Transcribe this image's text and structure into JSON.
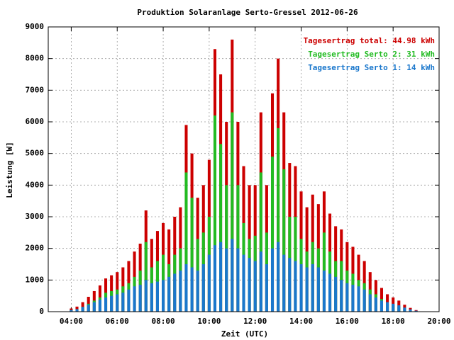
{
  "chart_data": {
    "type": "bar",
    "title": "Produktion Solaranlage Serto-Gressel 2012-06-26",
    "x_label": "Zeit (UTC)",
    "y_label": "Leistung [W]",
    "x": [
      4,
      4.25,
      4.5,
      4.75,
      5,
      5.25,
      5.5,
      5.75,
      6,
      6.25,
      6.5,
      6.75,
      7,
      7.25,
      7.5,
      7.75,
      8,
      8.25,
      8.5,
      8.75,
      9,
      9.25,
      9.5,
      9.75,
      10,
      10.25,
      10.5,
      10.75,
      11,
      11.25,
      11.5,
      11.75,
      12,
      12.25,
      12.5,
      12.75,
      13,
      13.25,
      13.5,
      13.75,
      14,
      14.25,
      14.5,
      14.75,
      15,
      15.25,
      15.5,
      15.75,
      16,
      16.25,
      16.5,
      16.75,
      17,
      17.25,
      17.5,
      17.75,
      18,
      18.25,
      18.5,
      18.75,
      19
    ],
    "series": [
      {
        "name": "Tagesertrag total: 44.98 kWh",
        "color": "#cc0000",
        "values": [
          100,
          160,
          300,
          470,
          650,
          830,
          1050,
          1150,
          1250,
          1400,
          1600,
          1900,
          2150,
          3200,
          2300,
          2550,
          2800,
          2600,
          3000,
          3300,
          5900,
          5000,
          3600,
          4000,
          4800,
          8300,
          7500,
          6000,
          8600,
          6000,
          4600,
          4000,
          4000,
          6300,
          4000,
          6900,
          8000,
          6300,
          4700,
          4600,
          3800,
          3300,
          3700,
          3400,
          3800,
          3100,
          2700,
          2600,
          2200,
          2050,
          1800,
          1600,
          1250,
          1000,
          750,
          550,
          450,
          350,
          220,
          120,
          50
        ]
      },
      {
        "name": "Tagesertrag Serto 2: 31 kWh",
        "color": "#22bb22",
        "values": [
          50,
          80,
          150,
          250,
          350,
          450,
          600,
          650,
          700,
          800,
          900,
          1100,
          1300,
          2200,
          1400,
          1600,
          1800,
          1500,
          1800,
          2000,
          4400,
          3600,
          2300,
          2500,
          3000,
          6200,
          5300,
          4000,
          6300,
          4000,
          2800,
          2300,
          2400,
          4400,
          2500,
          4900,
          5800,
          4500,
          3000,
          3000,
          2300,
          1900,
          2200,
          2000,
          2500,
          1900,
          1600,
          1600,
          1300,
          1200,
          1000,
          900,
          700,
          550,
          400,
          250,
          200,
          150,
          90,
          50,
          20
        ]
      },
      {
        "name": "Tagesertrag Serto 1: 14 kWh",
        "color": "#1a77cc",
        "values": [
          50,
          80,
          150,
          220,
          300,
          380,
          450,
          500,
          550,
          600,
          700,
          800,
          850,
          1000,
          900,
          950,
          1000,
          1100,
          1200,
          1300,
          1500,
          1400,
          1300,
          1500,
          1800,
          2100,
          2200,
          2000,
          2300,
          2000,
          1800,
          1700,
          1600,
          1900,
          1500,
          2000,
          2200,
          1800,
          1700,
          1600,
          1500,
          1400,
          1500,
          1400,
          1300,
          1200,
          1100,
          1000,
          900,
          850,
          800,
          700,
          550,
          450,
          350,
          300,
          250,
          200,
          130,
          70,
          30
        ]
      }
    ],
    "xlim": [
      3,
      20
    ],
    "xticks": [
      {
        "value": 4,
        "label": "04:00"
      },
      {
        "value": 6,
        "label": "06:00"
      },
      {
        "value": 8,
        "label": "08:00"
      },
      {
        "value": 10,
        "label": "10:00"
      },
      {
        "value": 12,
        "label": "12:00"
      },
      {
        "value": 14,
        "label": "14:00"
      },
      {
        "value": 16,
        "label": "16:00"
      },
      {
        "value": 18,
        "label": "18:00"
      },
      {
        "value": 20,
        "label": "20:00"
      }
    ],
    "ylim": [
      0,
      9000
    ],
    "yticks": [
      0,
      1000,
      2000,
      3000,
      4000,
      5000,
      6000,
      7000,
      8000,
      9000
    ],
    "grid": true,
    "legend": "top-right"
  }
}
